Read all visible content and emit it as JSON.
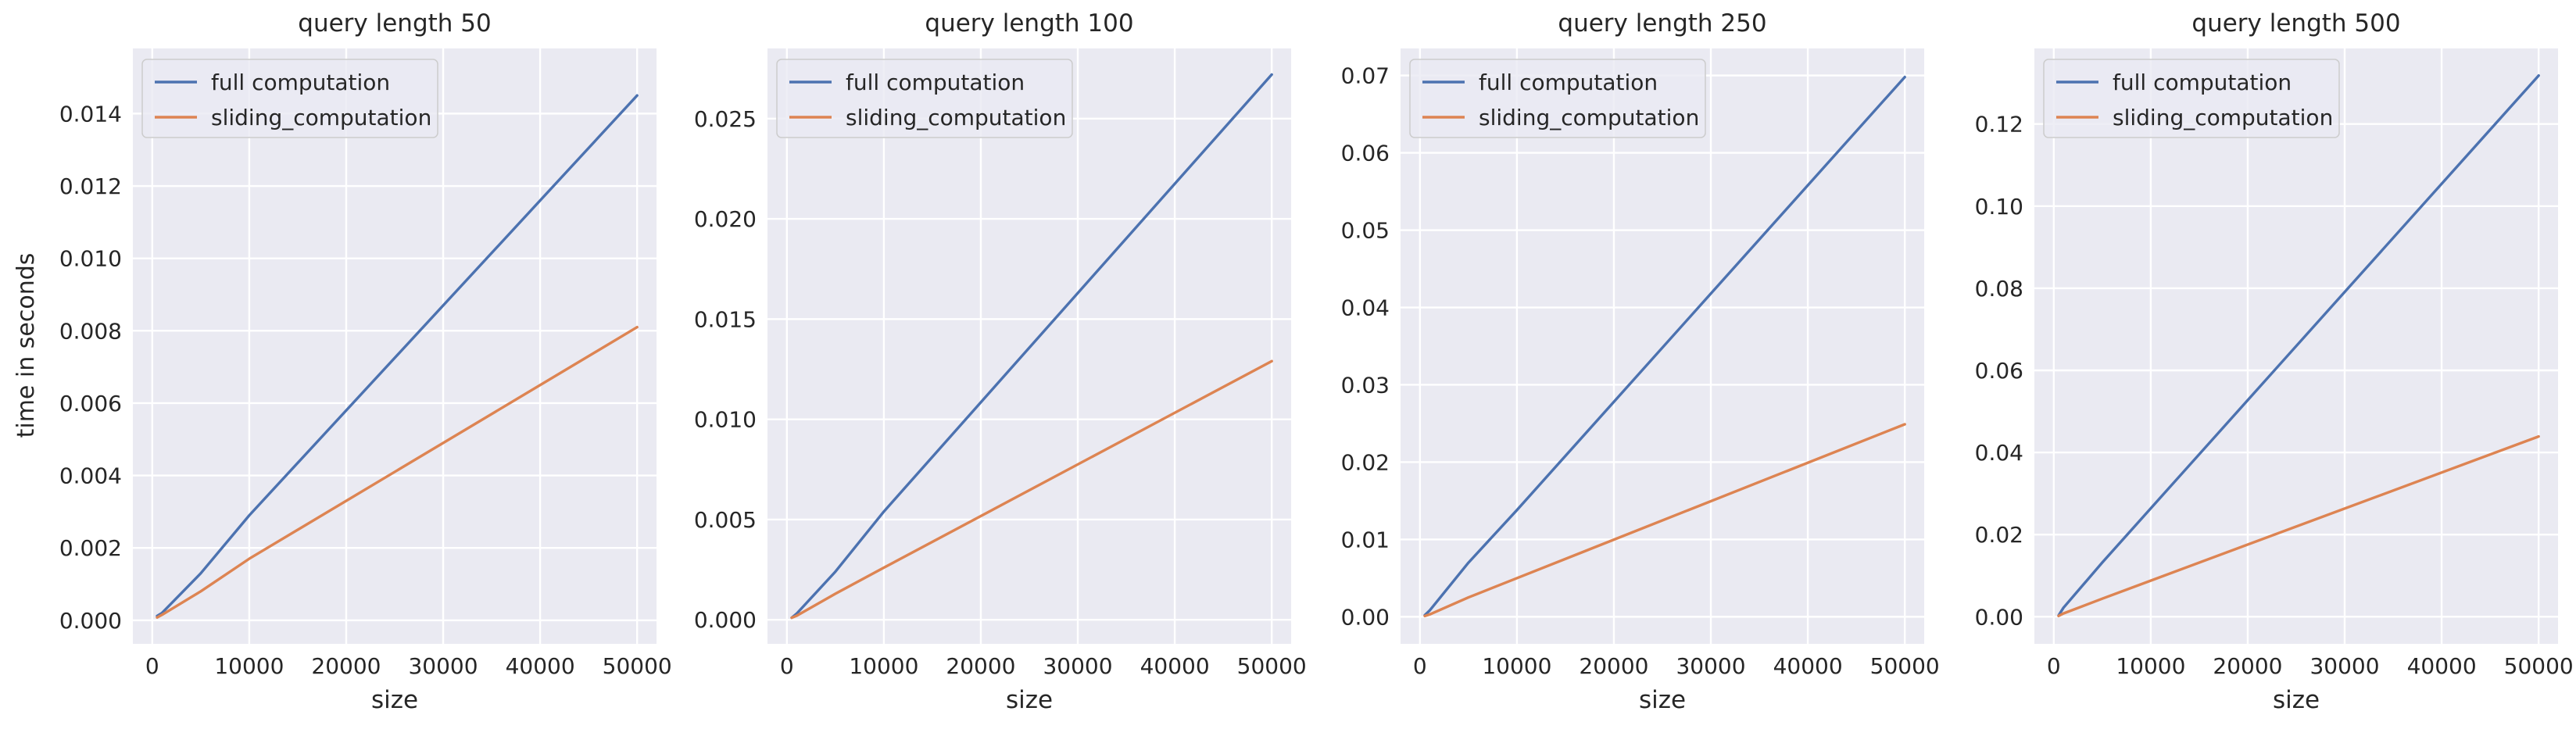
{
  "figure": {
    "ylabel": "time in seconds"
  },
  "colors": {
    "background": "#eaeaf2",
    "grid": "#ffffff",
    "full": "#4c72b0",
    "sliding": "#dd8452",
    "text": "#262626"
  },
  "chart_data": [
    {
      "type": "line",
      "title": "query length 50",
      "xlabel": "size",
      "ylabel": "time in seconds",
      "xlim": [
        -2000,
        52000
      ],
      "ylim": [
        -0.00065,
        0.0158
      ],
      "xticks": [
        0,
        10000,
        20000,
        30000,
        40000,
        50000
      ],
      "xtick_labels": [
        "0",
        "10000",
        "20000",
        "30000",
        "40000",
        "50000"
      ],
      "yticks": [
        0,
        0.002,
        0.004,
        0.006,
        0.008,
        0.01,
        0.012,
        0.014
      ],
      "ytick_labels": [
        "0.000",
        "0.002",
        "0.004",
        "0.006",
        "0.008",
        "0.010",
        "0.012",
        "0.014"
      ],
      "grid": true,
      "legend": "upper-left",
      "series": [
        {
          "name": "full computation",
          "color": "#4c72b0",
          "x": [
            500,
            1000,
            5000,
            10000,
            50000
          ],
          "y": [
            0.00012,
            0.0002,
            0.0013,
            0.0029,
            0.0145
          ]
        },
        {
          "name": "sliding_computation",
          "color": "#dd8452",
          "x": [
            500,
            1000,
            5000,
            10000,
            50000
          ],
          "y": [
            8e-05,
            0.00015,
            0.0008,
            0.0017,
            0.0081
          ]
        }
      ]
    },
    {
      "type": "line",
      "title": "query length 100",
      "xlabel": "size",
      "ylabel": "",
      "xlim": [
        -2000,
        52000
      ],
      "ylim": [
        -0.0012,
        0.0285
      ],
      "xticks": [
        0,
        10000,
        20000,
        30000,
        40000,
        50000
      ],
      "xtick_labels": [
        "0",
        "10000",
        "20000",
        "30000",
        "40000",
        "50000"
      ],
      "yticks": [
        0,
        0.005,
        0.01,
        0.015,
        0.02,
        0.025
      ],
      "ytick_labels": [
        "0.000",
        "0.005",
        "0.010",
        "0.015",
        "0.020",
        "0.025"
      ],
      "grid": true,
      "legend": "upper-left",
      "series": [
        {
          "name": "full computation",
          "color": "#4c72b0",
          "x": [
            500,
            1000,
            5000,
            10000,
            50000
          ],
          "y": [
            0.0001,
            0.0003,
            0.0024,
            0.0054,
            0.0272
          ]
        },
        {
          "name": "sliding_computation",
          "color": "#dd8452",
          "x": [
            500,
            1000,
            5000,
            10000,
            50000
          ],
          "y": [
            0.0001,
            0.0002,
            0.0013,
            0.0026,
            0.0129
          ]
        }
      ]
    },
    {
      "type": "line",
      "title": "query length 250",
      "xlabel": "size",
      "ylabel": "",
      "xlim": [
        -2000,
        52000
      ],
      "ylim": [
        -0.0035,
        0.0735
      ],
      "xticks": [
        0,
        10000,
        20000,
        30000,
        40000,
        50000
      ],
      "xtick_labels": [
        "0",
        "10000",
        "20000",
        "30000",
        "40000",
        "50000"
      ],
      "yticks": [
        0,
        0.01,
        0.02,
        0.03,
        0.04,
        0.05,
        0.06,
        0.07
      ],
      "ytick_labels": [
        "0.00",
        "0.01",
        "0.02",
        "0.03",
        "0.04",
        "0.05",
        "0.06",
        "0.07"
      ],
      "grid": true,
      "legend": "upper-left",
      "series": [
        {
          "name": "full computation",
          "color": "#4c72b0",
          "x": [
            500,
            1000,
            5000,
            10000,
            50000
          ],
          "y": [
            0.0002,
            0.0008,
            0.007,
            0.0138,
            0.0698
          ]
        },
        {
          "name": "sliding_computation",
          "color": "#dd8452",
          "x": [
            500,
            1000,
            5000,
            10000,
            50000
          ],
          "y": [
            0.0001,
            0.0003,
            0.0025,
            0.005,
            0.0249
          ]
        }
      ]
    },
    {
      "type": "line",
      "title": "query length 500",
      "xlabel": "size",
      "ylabel": "",
      "xlim": [
        -2000,
        52000
      ],
      "ylim": [
        -0.0066,
        0.1384
      ],
      "xticks": [
        0,
        10000,
        20000,
        30000,
        40000,
        50000
      ],
      "xtick_labels": [
        "0",
        "10000",
        "20000",
        "30000",
        "40000",
        "50000"
      ],
      "yticks": [
        0,
        0.02,
        0.04,
        0.06,
        0.08,
        0.1,
        0.12
      ],
      "ytick_labels": [
        "0.00",
        "0.02",
        "0.04",
        "0.06",
        "0.08",
        "0.10",
        "0.12"
      ],
      "grid": true,
      "legend": "upper-left",
      "series": [
        {
          "name": "full computation",
          "color": "#4c72b0",
          "x": [
            500,
            1000,
            5000,
            10000,
            50000
          ],
          "y": [
            0.0003,
            0.0022,
            0.0132,
            0.0264,
            0.1318
          ]
        },
        {
          "name": "sliding_computation",
          "color": "#dd8452",
          "x": [
            500,
            1000,
            5000,
            10000,
            50000
          ],
          "y": [
            0.0002,
            0.0008,
            0.0044,
            0.0088,
            0.0439
          ]
        }
      ]
    }
  ]
}
